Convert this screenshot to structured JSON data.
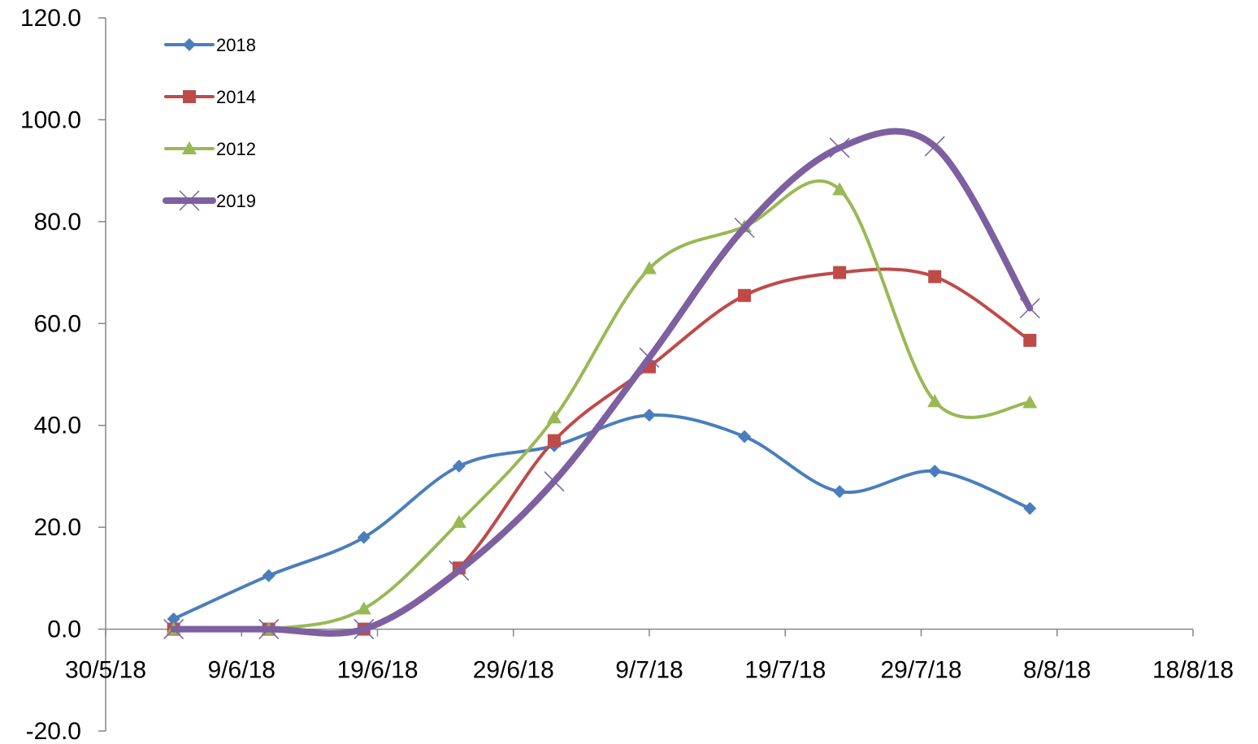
{
  "chart_data": {
    "type": "line",
    "title": "",
    "xlabel": "",
    "ylabel": "",
    "x_axis": {
      "type": "date",
      "range": [
        "2018-05-30",
        "2018-08-18"
      ],
      "tick_dates": [
        "2018-05-30",
        "2018-06-09",
        "2018-06-19",
        "2018-06-29",
        "2018-07-09",
        "2018-07-19",
        "2018-07-29",
        "2018-08-08",
        "2018-08-18"
      ],
      "tick_labels": [
        "30/5/18",
        "9/6/18",
        "19/6/18",
        "29/6/18",
        "9/7/18",
        "19/7/18",
        "29/7/18",
        "8/8/18",
        "18/8/18"
      ]
    },
    "y_axis": {
      "range": [
        -20,
        120
      ],
      "ticks": [
        -20,
        0,
        20,
        40,
        60,
        80,
        100,
        120
      ],
      "tick_labels": [
        "-20.0",
        "0.0",
        "20.0",
        "40.0",
        "60.0",
        "80.0",
        "100.0",
        "120.0"
      ]
    },
    "x": [
      "2018-06-04",
      "2018-06-11",
      "2018-06-18",
      "2018-06-25",
      "2018-07-02",
      "2018-07-09",
      "2018-07-16",
      "2018-07-23",
      "2018-07-30",
      "2018-08-06"
    ],
    "series": [
      {
        "name": "2018",
        "color": "#4A7EBB",
        "marker": "diamond",
        "line_width": "normal",
        "values": [
          2.0,
          10.5,
          18.0,
          32.0,
          36.0,
          42.0,
          37.8,
          27.0,
          31.0,
          23.7
        ]
      },
      {
        "name": "2014",
        "color": "#BE4B48",
        "marker": "square",
        "line_width": "normal",
        "values": [
          0.0,
          0.0,
          0.0,
          12.0,
          37.0,
          51.5,
          65.5,
          70.0,
          69.2,
          56.7
        ]
      },
      {
        "name": "2012",
        "color": "#98B954",
        "marker": "triangle",
        "line_width": "normal",
        "values": [
          0.0,
          0.0,
          4.0,
          21.0,
          41.5,
          70.8,
          79.0,
          86.3,
          44.7,
          44.5
        ]
      },
      {
        "name": "2019",
        "color": "#7D60A0",
        "marker": "x",
        "line_width": "thick",
        "values": [
          0.0,
          0.0,
          0.0,
          11.5,
          29.0,
          53.3,
          78.8,
          94.5,
          94.8,
          63.0
        ]
      }
    ],
    "smoothed": true,
    "grid": false,
    "legend_position": "top-left"
  }
}
